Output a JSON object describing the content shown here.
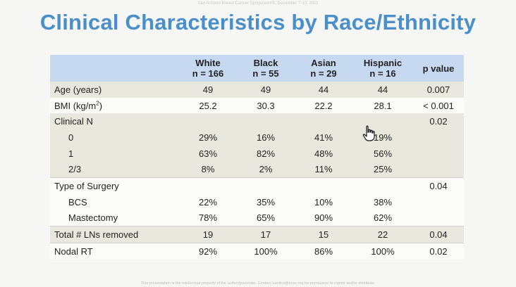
{
  "slide": {
    "header_note": "San Antonio Breast Cancer Symposium®, December 7-10, 2021",
    "title": "Clinical Characteristics by Race/Ethnicity",
    "footer_note": "This presentation is the intellectual property of the author/presenter. Contact bantico@ecsc.org for permission to reprint and/or distribute."
  },
  "table": {
    "columns": [
      {
        "name": "",
        "n": ""
      },
      {
        "name": "White",
        "n": "n = 166"
      },
      {
        "name": "Black",
        "n": "n = 55"
      },
      {
        "name": "Asian",
        "n": "n = 29"
      },
      {
        "name": "Hispanic",
        "n": "n = 16"
      },
      {
        "name": "p value",
        "n": ""
      }
    ],
    "rows": [
      {
        "label": "Age (years)",
        "white": "49",
        "black": "49",
        "asian": "44",
        "hispanic": "44",
        "p": "0.007"
      },
      {
        "label": "BMI (kg/m",
        "label_sup": "2",
        "label_tail": ")",
        "white": "25.2",
        "black": "30.3",
        "asian": "22.2",
        "hispanic": "28.1",
        "p": "< 0.001"
      },
      {
        "label": "Clinical N",
        "white": "",
        "black": "",
        "asian": "",
        "hispanic": "",
        "p": "0.02"
      },
      {
        "label": "0",
        "white": "29%",
        "black": "16%",
        "asian": "41%",
        "hispanic": "19%",
        "p": ""
      },
      {
        "label": "1",
        "white": "63%",
        "black": "82%",
        "asian": "48%",
        "hispanic": "56%",
        "p": ""
      },
      {
        "label": "2/3",
        "white": "8%",
        "black": "2%",
        "asian": "11%",
        "hispanic": "25%",
        "p": ""
      },
      {
        "label": "Type of Surgery",
        "white": "",
        "black": "",
        "asian": "",
        "hispanic": "",
        "p": "0.04"
      },
      {
        "label": "BCS",
        "white": "22%",
        "black": "35%",
        "asian": "10%",
        "hispanic": "38%",
        "p": ""
      },
      {
        "label": "Mastectomy",
        "white": "78%",
        "black": "65%",
        "asian": "90%",
        "hispanic": "62%",
        "p": ""
      },
      {
        "label": "Total # LNs removed",
        "white": "19",
        "black": "17",
        "asian": "15",
        "hispanic": "22",
        "p": "0.04"
      },
      {
        "label": "Nodal RT",
        "white": "92%",
        "black": "100%",
        "asian": "86%",
        "hispanic": "100%",
        "p": "0.02"
      }
    ]
  },
  "cursor_icon": "hand-pointer-icon"
}
